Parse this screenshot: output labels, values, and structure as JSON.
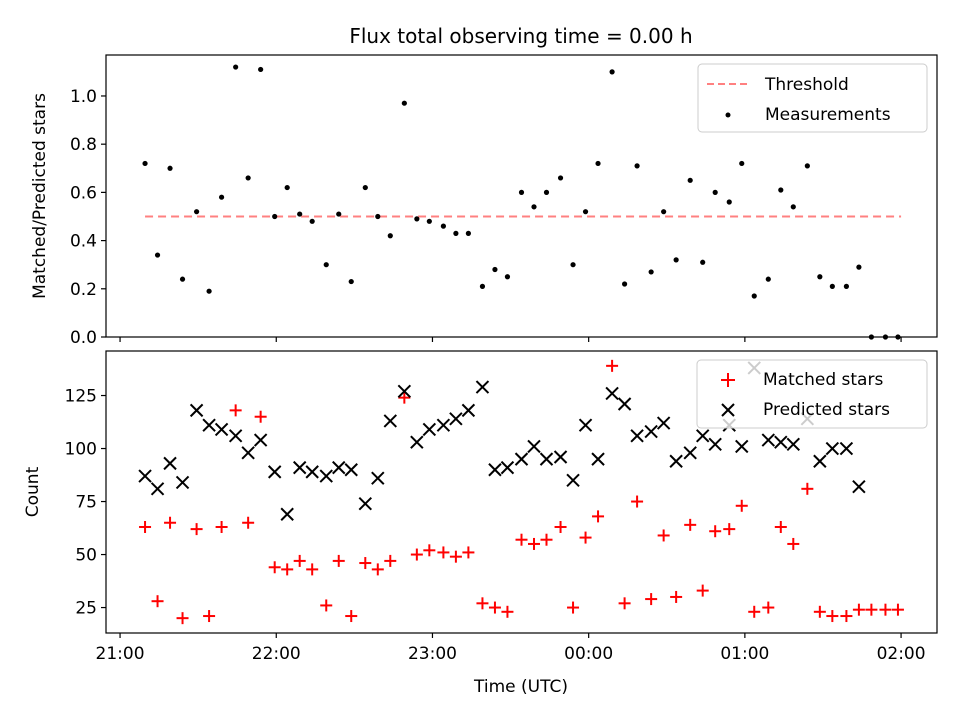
{
  "chart_data": [
    {
      "type": "scatter",
      "title": "Flux total observing time = 0.00 h",
      "xlabel": "",
      "ylabel": "Matched/Predicted stars",
      "ylim": [
        0,
        1.17
      ],
      "xlim": [
        -0.09,
        5.23
      ],
      "yticks": [
        "0.0",
        "0.2",
        "0.4",
        "0.6",
        "0.8",
        "1.0"
      ],
      "legend_placement": "top-right",
      "threshold": {
        "name": "Threshold",
        "value": 0.5,
        "x": [
          0.16,
          5.0
        ],
        "color": "#ff8080",
        "style": "dashed"
      },
      "series": [
        {
          "name": "Measurements",
          "color": "#000000",
          "marker": "dot",
          "x": [
            0.16,
            0.24,
            0.32,
            0.4,
            0.49,
            0.57,
            0.65,
            0.74,
            0.82,
            0.9,
            0.99,
            1.07,
            1.15,
            1.23,
            1.32,
            1.4,
            1.48,
            1.57,
            1.65,
            1.73,
            1.82,
            1.9,
            1.98,
            2.07,
            2.15,
            2.23,
            2.32,
            2.4,
            2.48,
            2.57,
            2.65,
            2.73,
            2.82,
            2.9,
            2.98,
            3.06,
            3.15,
            3.23,
            3.31,
            3.4,
            3.48,
            3.56,
            3.65,
            3.73,
            3.81,
            3.9,
            3.98,
            4.06,
            4.15,
            4.23,
            4.31,
            4.4,
            4.48,
            4.56,
            4.65,
            4.73,
            4.81,
            4.9,
            4.98
          ],
          "y": [
            0.72,
            0.34,
            0.7,
            0.24,
            0.52,
            0.19,
            0.58,
            1.12,
            0.66,
            1.11,
            0.5,
            0.62,
            0.51,
            0.48,
            0.3,
            0.51,
            0.23,
            0.62,
            0.5,
            0.42,
            0.97,
            0.49,
            0.48,
            0.46,
            0.43,
            0.43,
            0.21,
            0.28,
            0.25,
            0.6,
            0.54,
            0.6,
            0.66,
            0.3,
            0.52,
            0.72,
            1.1,
            0.22,
            0.71,
            0.27,
            0.52,
            0.32,
            0.65,
            0.31,
            0.6,
            0.56,
            0.72,
            0.17,
            0.24,
            0.61,
            0.54,
            0.71,
            0.25,
            0.21,
            0.21,
            0.29,
            0.0,
            0.0,
            0.0
          ]
        }
      ]
    },
    {
      "type": "scatter",
      "title": "",
      "xlabel": "Time (UTC)",
      "ylabel": "Count",
      "ylim": [
        13,
        146
      ],
      "xlim": [
        -0.09,
        5.23
      ],
      "xticks": [
        "21:00",
        "22:00",
        "23:00",
        "00:00",
        "01:00",
        "02:00"
      ],
      "yticks": [
        "25",
        "50",
        "75",
        "100",
        "125"
      ],
      "legend_placement": "top-right",
      "series": [
        {
          "name": "Matched stars",
          "color": "#ff0000",
          "marker": "plus",
          "x": [
            0.16,
            0.24,
            0.32,
            0.4,
            0.49,
            0.57,
            0.65,
            0.74,
            0.82,
            0.9,
            0.99,
            1.07,
            1.15,
            1.23,
            1.32,
            1.4,
            1.48,
            1.57,
            1.65,
            1.73,
            1.82,
            1.9,
            1.98,
            2.07,
            2.15,
            2.23,
            2.32,
            2.4,
            2.48,
            2.57,
            2.65,
            2.73,
            2.82,
            2.9,
            2.98,
            3.06,
            3.15,
            3.23,
            3.31,
            3.4,
            3.48,
            3.56,
            3.65,
            3.73,
            3.81,
            3.9,
            3.98,
            4.06,
            4.15,
            4.23,
            4.31,
            4.4,
            4.48,
            4.56,
            4.65,
            4.73,
            4.81,
            4.9,
            4.98
          ],
          "y": [
            63,
            28,
            65,
            20,
            62,
            21,
            63,
            118,
            65,
            115,
            44,
            43,
            47,
            43,
            26,
            47,
            21,
            46,
            43,
            47,
            124,
            50,
            52,
            51,
            49,
            51,
            27,
            25,
            23,
            57,
            55,
            57,
            63,
            25,
            58,
            68,
            139,
            27,
            75,
            29,
            59,
            30,
            64,
            33,
            61,
            62,
            73,
            23,
            25,
            63,
            55,
            81,
            23,
            21,
            21,
            24,
            24,
            24,
            24
          ]
        },
        {
          "name": "Predicted stars",
          "color": "#000000",
          "marker": "x",
          "x": [
            0.16,
            0.24,
            0.32,
            0.4,
            0.49,
            0.57,
            0.65,
            0.74,
            0.82,
            0.9,
            0.99,
            1.07,
            1.15,
            1.23,
            1.32,
            1.4,
            1.48,
            1.57,
            1.65,
            1.73,
            1.82,
            1.9,
            1.98,
            2.07,
            2.15,
            2.23,
            2.32,
            2.4,
            2.48,
            2.57,
            2.65,
            2.73,
            2.82,
            2.9,
            2.98,
            3.06,
            3.15,
            3.23,
            3.31,
            3.4,
            3.48,
            3.56,
            3.65,
            3.73,
            3.81,
            3.9,
            3.98,
            4.06,
            4.15,
            4.23,
            4.31,
            4.4,
            4.48,
            4.56,
            4.65,
            4.73
          ],
          "y": [
            87,
            81,
            93,
            84,
            118,
            111,
            109,
            106,
            98,
            104,
            89,
            69,
            91,
            89,
            87,
            91,
            90,
            74,
            86,
            113,
            127,
            103,
            109,
            111,
            114,
            118,
            129,
            90,
            91,
            95,
            101,
            95,
            96,
            85,
            111,
            95,
            126,
            121,
            106,
            108,
            112,
            94,
            98,
            106,
            102,
            111,
            101,
            138,
            104,
            103,
            102,
            114,
            94,
            100,
            100,
            82
          ]
        }
      ]
    }
  ]
}
